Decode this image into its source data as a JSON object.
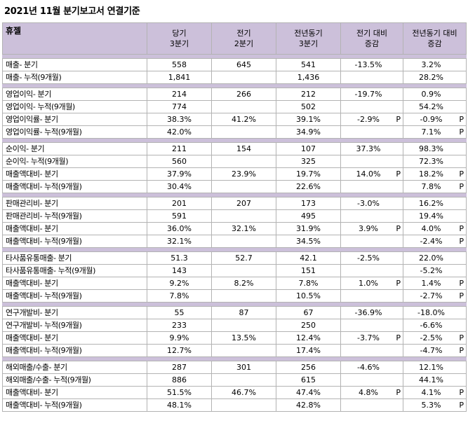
{
  "title": "2021년 11월 분기보고서 연결기준",
  "header": {
    "company": "휴젤",
    "cols": [
      {
        "line1": "당기",
        "line2": "3분기"
      },
      {
        "line1": "전기",
        "line2": "2분기"
      },
      {
        "line1": "전년동기",
        "line2": "3분기"
      },
      {
        "line1": "전기 대비",
        "line2": "증감"
      },
      {
        "line1": "전년동기 대비",
        "line2": "증감"
      }
    ]
  },
  "groups": [
    {
      "rows": [
        {
          "label": "매출- 분기",
          "cur": "558",
          "prev": "645",
          "yoy": "541",
          "qoq": "-13.5%",
          "qoq_p": "",
          "yoy_chg": "3.2%",
          "yoy_p": ""
        },
        {
          "label": "매출- 누적(9개월)",
          "cur": "1,841",
          "prev": "",
          "yoy": "1,436",
          "qoq": "",
          "qoq_p": "",
          "yoy_chg": "28.2%",
          "yoy_p": ""
        }
      ]
    },
    {
      "rows": [
        {
          "label": "영업이익- 분기",
          "cur": "214",
          "prev": "266",
          "yoy": "212",
          "qoq": "-19.7%",
          "qoq_p": "",
          "yoy_chg": "0.9%",
          "yoy_p": ""
        },
        {
          "label": "영업이익- 누적(9개월)",
          "cur": "774",
          "prev": "",
          "yoy": "502",
          "qoq": "",
          "qoq_p": "",
          "yoy_chg": "54.2%",
          "yoy_p": ""
        },
        {
          "label": "영업이익률- 분기",
          "cur": "38.3%",
          "prev": "41.2%",
          "yoy": "39.1%",
          "qoq": "-2.9%",
          "qoq_p": "P",
          "yoy_chg": "-0.9%",
          "yoy_p": "P"
        },
        {
          "label": "영업이익률- 누적(9개월)",
          "cur": "42.0%",
          "prev": "",
          "yoy": "34.9%",
          "qoq": "",
          "qoq_p": "",
          "yoy_chg": "7.1%",
          "yoy_p": "P"
        }
      ]
    },
    {
      "rows": [
        {
          "label": "순이익- 분기",
          "cur": "211",
          "prev": "154",
          "yoy": "107",
          "qoq": "37.3%",
          "qoq_p": "",
          "yoy_chg": "98.3%",
          "yoy_p": ""
        },
        {
          "label": "순이익- 누적(9개월)",
          "cur": "560",
          "prev": "",
          "yoy": "325",
          "qoq": "",
          "qoq_p": "",
          "yoy_chg": "72.3%",
          "yoy_p": ""
        },
        {
          "label": "매출액대비- 분기",
          "cur": "37.9%",
          "prev": "23.9%",
          "yoy": "19.7%",
          "qoq": "14.0%",
          "qoq_p": "P",
          "yoy_chg": "18.2%",
          "yoy_p": "P"
        },
        {
          "label": "매출액대비- 누적(9개월)",
          "cur": "30.4%",
          "prev": "",
          "yoy": "22.6%",
          "qoq": "",
          "qoq_p": "",
          "yoy_chg": "7.8%",
          "yoy_p": "P"
        }
      ]
    },
    {
      "rows": [
        {
          "label": "판매관리비- 분기",
          "cur": "201",
          "prev": "207",
          "yoy": "173",
          "qoq": "-3.0%",
          "qoq_p": "",
          "yoy_chg": "16.2%",
          "yoy_p": ""
        },
        {
          "label": "판매관리비- 누적(9개월)",
          "cur": "591",
          "prev": "",
          "yoy": "495",
          "qoq": "",
          "qoq_p": "",
          "yoy_chg": "19.4%",
          "yoy_p": ""
        },
        {
          "label": "매출액대비- 분기",
          "cur": "36.0%",
          "prev": "32.1%",
          "yoy": "31.9%",
          "qoq": "3.9%",
          "qoq_p": "P",
          "yoy_chg": "4.0%",
          "yoy_p": "P"
        },
        {
          "label": "매출액대비- 누적(9개월)",
          "cur": "32.1%",
          "prev": "",
          "yoy": "34.5%",
          "qoq": "",
          "qoq_p": "",
          "yoy_chg": "-2.4%",
          "yoy_p": "P"
        }
      ]
    },
    {
      "rows": [
        {
          "label": "타사품유통매출- 분기",
          "cur": "51.3",
          "prev": "52.7",
          "yoy": "42.1",
          "qoq": "-2.5%",
          "qoq_p": "",
          "yoy_chg": "22.0%",
          "yoy_p": ""
        },
        {
          "label": "타사품유통매출- 누적(9개월)",
          "cur": "143",
          "prev": "",
          "yoy": "151",
          "qoq": "",
          "qoq_p": "",
          "yoy_chg": "-5.2%",
          "yoy_p": ""
        },
        {
          "label": "매출액대비- 분기",
          "cur": "9.2%",
          "prev": "8.2%",
          "yoy": "7.8%",
          "qoq": "1.0%",
          "qoq_p": "P",
          "yoy_chg": "1.4%",
          "yoy_p": "P"
        },
        {
          "label": "매출액대비- 누적(9개월)",
          "cur": "7.8%",
          "prev": "",
          "yoy": "10.5%",
          "qoq": "",
          "qoq_p": "",
          "yoy_chg": "-2.7%",
          "yoy_p": "P"
        }
      ]
    },
    {
      "rows": [
        {
          "label": "연구개발비- 분기",
          "cur": "55",
          "prev": "87",
          "yoy": "67",
          "qoq": "-36.9%",
          "qoq_p": "",
          "yoy_chg": "-18.0%",
          "yoy_p": ""
        },
        {
          "label": "연구개발비- 누적(9개월)",
          "cur": "233",
          "prev": "",
          "yoy": "250",
          "qoq": "",
          "qoq_p": "",
          "yoy_chg": "-6.6%",
          "yoy_p": ""
        },
        {
          "label": "매출액대비- 분기",
          "cur": "9.9%",
          "prev": "13.5%",
          "yoy": "12.4%",
          "qoq": "-3.7%",
          "qoq_p": "P",
          "yoy_chg": "-2.5%",
          "yoy_p": "P"
        },
        {
          "label": "매출액대비- 누적(9개월)",
          "cur": "12.7%",
          "prev": "",
          "yoy": "17.4%",
          "qoq": "",
          "qoq_p": "",
          "yoy_chg": "-4.7%",
          "yoy_p": "P"
        }
      ]
    },
    {
      "rows": [
        {
          "label": "해외매출/수출- 분기",
          "cur": "287",
          "prev": "301",
          "yoy": "256",
          "qoq": "-4.6%",
          "qoq_p": "",
          "yoy_chg": "12.1%",
          "yoy_p": ""
        },
        {
          "label": "해외매출/수출- 누적(9개월)",
          "cur": "886",
          "prev": "",
          "yoy": "615",
          "qoq": "",
          "qoq_p": "",
          "yoy_chg": "44.1%",
          "yoy_p": ""
        },
        {
          "label": "매출액대비- 분기",
          "cur": "51.5%",
          "prev": "46.7%",
          "yoy": "47.4%",
          "qoq": "4.8%",
          "qoq_p": "P",
          "yoy_chg": "4.1%",
          "yoy_p": "P"
        },
        {
          "label": "매출액대비- 누적(9개월)",
          "cur": "48.1%",
          "prev": "",
          "yoy": "42.8%",
          "qoq": "",
          "qoq_p": "",
          "yoy_chg": "5.3%",
          "yoy_p": "P"
        }
      ]
    }
  ]
}
